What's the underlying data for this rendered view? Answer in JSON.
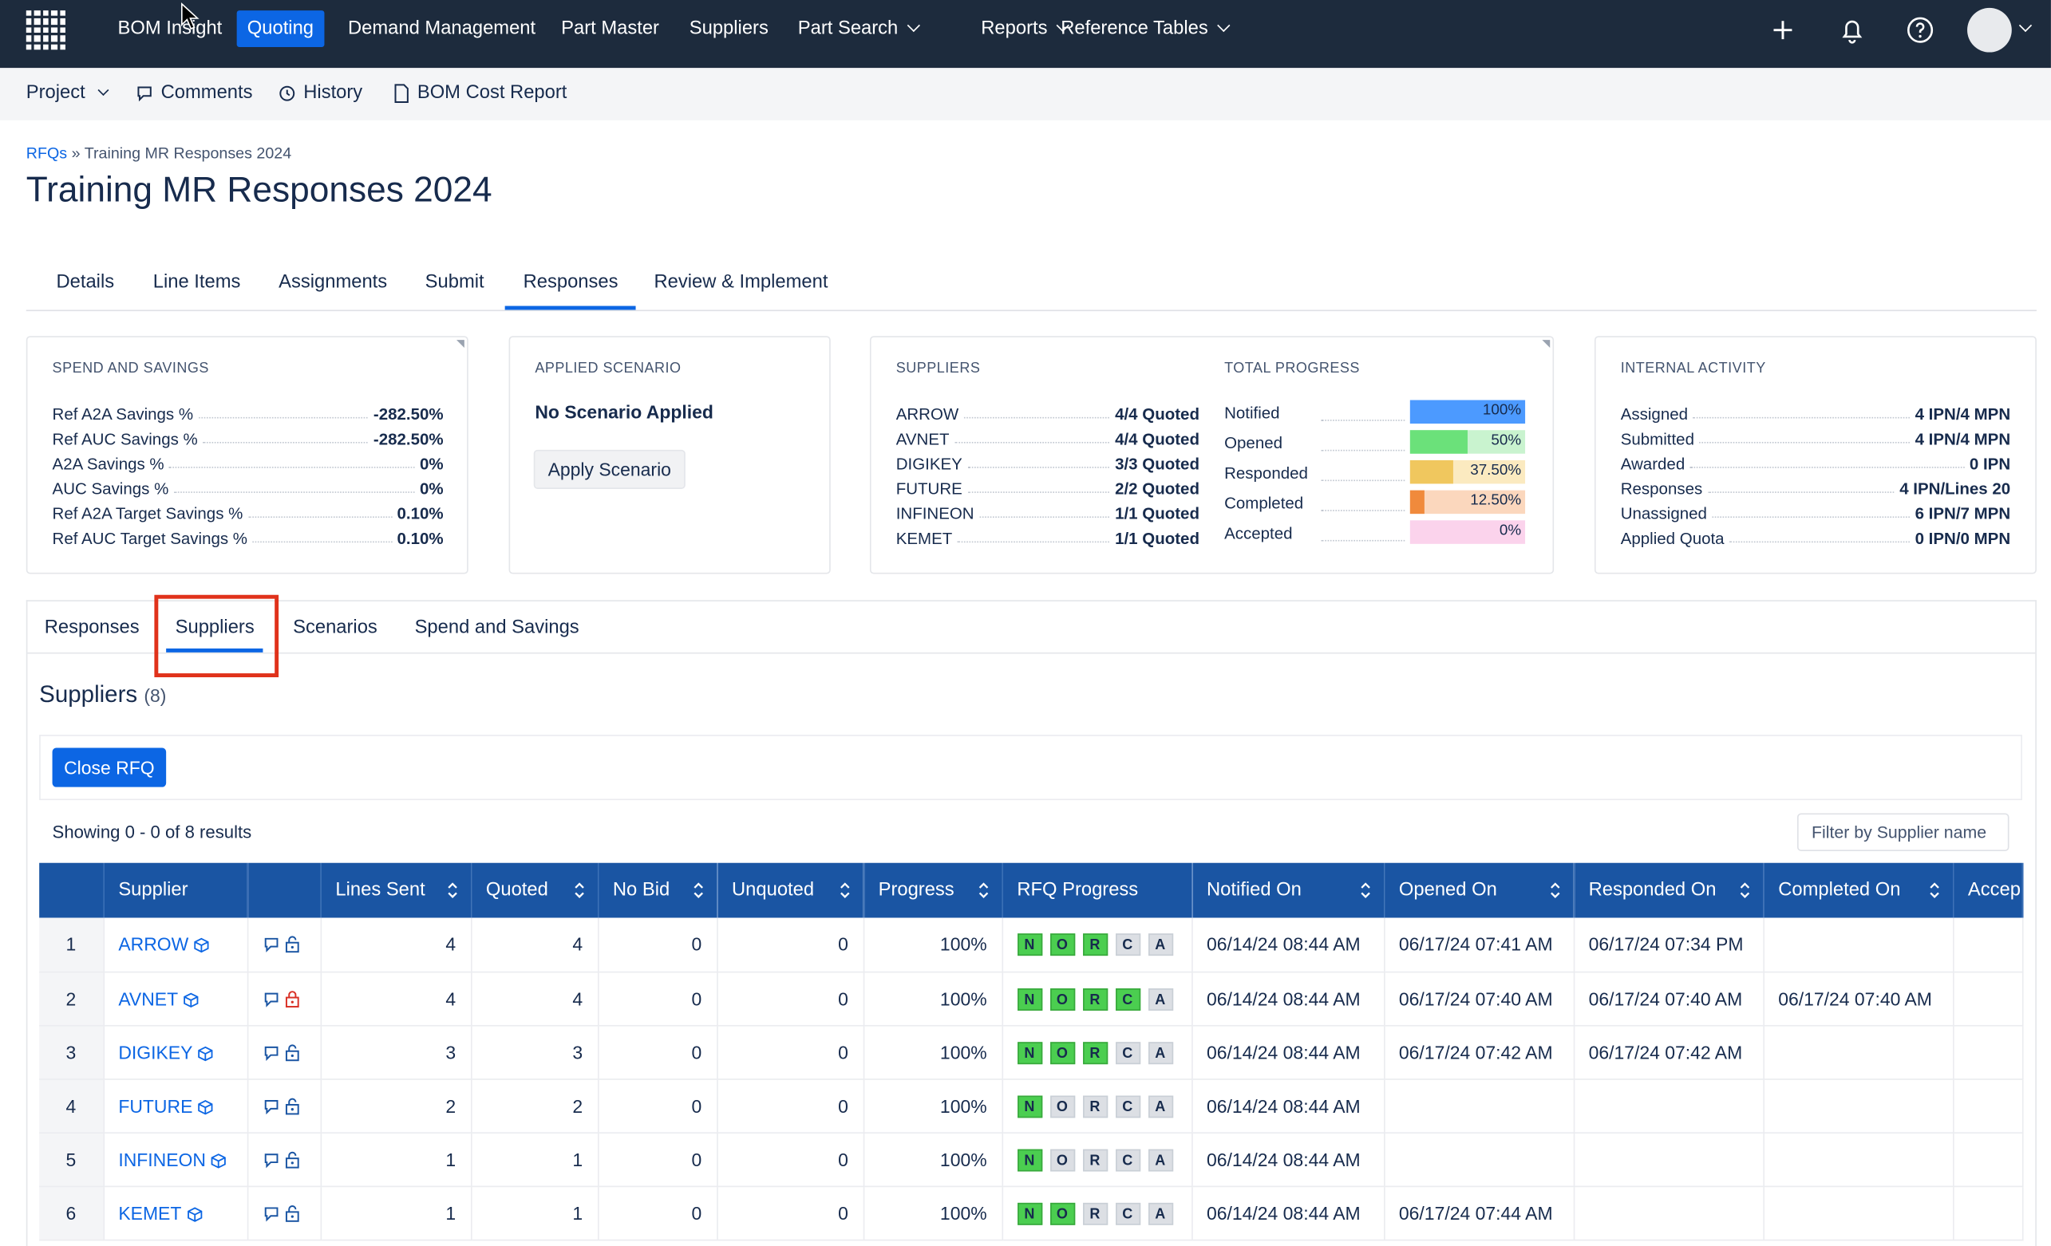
{
  "topnav": {
    "items": [
      {
        "label": "BOM Insight"
      },
      {
        "label": "Quoting"
      },
      {
        "label": "Demand Management"
      },
      {
        "label": "Part Master"
      },
      {
        "label": "Suppliers"
      },
      {
        "label": "Part Search"
      },
      {
        "label": "Reports"
      },
      {
        "label": "Reference Tables"
      }
    ],
    "active": "Quoting",
    "colors": {
      "bar": "#1d2b3d",
      "active": "#0c66e4"
    }
  },
  "subnav": {
    "project": "Project",
    "comments": "Comments",
    "history": "History",
    "bom_cost_report": "BOM Cost Report"
  },
  "breadcrumb": {
    "root": "RFQs",
    "sep": "»",
    "current": "Training MR Responses 2024"
  },
  "page_title": "Training MR Responses 2024",
  "tabs": [
    "Details",
    "Line Items",
    "Assignments",
    "Submit",
    "Responses",
    "Review & Implement"
  ],
  "active_tab": "Responses",
  "spend": {
    "heading": "SPEND AND SAVINGS",
    "rows": [
      {
        "label": "Ref A2A Savings %",
        "value": "-282.50%"
      },
      {
        "label": "Ref AUC Savings %",
        "value": "-282.50%"
      },
      {
        "label": "A2A Savings %",
        "value": "0%"
      },
      {
        "label": "AUC Savings %",
        "value": "0%"
      },
      {
        "label": "Ref A2A Target Savings %",
        "value": "0.10%"
      },
      {
        "label": "Ref AUC Target Savings %",
        "value": "0.10%"
      }
    ]
  },
  "scenario": {
    "heading": "APPLIED SCENARIO",
    "status": "No Scenario Applied",
    "button": "Apply Scenario"
  },
  "suppliers_card": {
    "heading": "SUPPLIERS",
    "rows": [
      {
        "name": "ARROW",
        "value": "4/4 Quoted"
      },
      {
        "name": "AVNET",
        "value": "4/4 Quoted"
      },
      {
        "name": "DIGIKEY",
        "value": "3/3 Quoted"
      },
      {
        "name": "FUTURE",
        "value": "2/2 Quoted"
      },
      {
        "name": "INFINEON",
        "value": "1/1 Quoted"
      },
      {
        "name": "KEMET",
        "value": "1/1 Quoted"
      }
    ]
  },
  "progress": {
    "heading": "TOTAL PROGRESS",
    "rows": [
      {
        "label": "Notified",
        "value": "100%",
        "fraction": 1.0,
        "fill": "#4c9aff",
        "bg": "#cce0ff"
      },
      {
        "label": "Opened",
        "value": "50%",
        "fraction": 0.5,
        "fill": "#6be17a",
        "bg": "#c9f3cf"
      },
      {
        "label": "Responded",
        "value": "37.50%",
        "fraction": 0.375,
        "fill": "#f0c75e",
        "bg": "#fbeac0"
      },
      {
        "label": "Completed",
        "value": "12.50%",
        "fraction": 0.125,
        "fill": "#f08a3c",
        "bg": "#fbd7bd"
      },
      {
        "label": "Accepted",
        "value": "0%",
        "fraction": 0.0,
        "fill": "#f59bd0",
        "bg": "#fbd3ec"
      }
    ]
  },
  "internal": {
    "heading": "INTERNAL ACTIVITY",
    "rows": [
      {
        "label": "Assigned",
        "value": "4 IPN/4 MPN"
      },
      {
        "label": "Submitted",
        "value": "4 IPN/4 MPN"
      },
      {
        "label": "Awarded",
        "value": "0 IPN"
      },
      {
        "label": "Responses",
        "value": "4 IPN/Lines 20"
      },
      {
        "label": "Unassigned",
        "value": "6 IPN/7 MPN"
      },
      {
        "label": "Applied Quota",
        "value": "0 IPN/0 MPN"
      }
    ]
  },
  "subtabs": [
    "Responses",
    "Suppliers",
    "Scenarios",
    "Spend and Savings"
  ],
  "active_subtab": "Suppliers",
  "section": {
    "title": "Suppliers",
    "count": "(8)"
  },
  "close_rfq": "Close RFQ",
  "showing": "Showing 0 - 0 of 8 results",
  "filter_placeholder": "Filter by Supplier name",
  "table": {
    "columns": [
      "",
      "Supplier",
      "",
      "Lines Sent",
      "Quoted",
      "No Bid",
      "Unquoted",
      "Progress",
      "RFQ Progress",
      "Notified On",
      "Opened On",
      "Responded On",
      "Completed On",
      "Accep"
    ],
    "chip_letters": [
      "N",
      "O",
      "R",
      "C",
      "A"
    ],
    "rows": [
      {
        "idx": "1",
        "supplier": "ARROW",
        "lock": "open",
        "lines_sent": "4",
        "quoted": "4",
        "no_bid": "0",
        "unquoted": "0",
        "progress": "100%",
        "rfq": [
          true,
          true,
          true,
          false,
          false
        ],
        "notified": "06/14/24 08:44 AM",
        "opened": "06/17/24 07:41 AM",
        "responded": "06/17/24 07:34 PM",
        "completed": ""
      },
      {
        "idx": "2",
        "supplier": "AVNET",
        "lock": "closed",
        "lines_sent": "4",
        "quoted": "4",
        "no_bid": "0",
        "unquoted": "0",
        "progress": "100%",
        "rfq": [
          true,
          true,
          true,
          true,
          false
        ],
        "notified": "06/14/24 08:44 AM",
        "opened": "06/17/24 07:40 AM",
        "responded": "06/17/24 07:40 AM",
        "completed": "06/17/24 07:40 AM"
      },
      {
        "idx": "3",
        "supplier": "DIGIKEY",
        "lock": "open",
        "lines_sent": "3",
        "quoted": "3",
        "no_bid": "0",
        "unquoted": "0",
        "progress": "100%",
        "rfq": [
          true,
          true,
          true,
          false,
          false
        ],
        "notified": "06/14/24 08:44 AM",
        "opened": "06/17/24 07:42 AM",
        "responded": "06/17/24 07:42 AM",
        "completed": ""
      },
      {
        "idx": "4",
        "supplier": "FUTURE",
        "lock": "open",
        "lines_sent": "2",
        "quoted": "2",
        "no_bid": "0",
        "unquoted": "0",
        "progress": "100%",
        "rfq": [
          true,
          false,
          false,
          false,
          false
        ],
        "notified": "06/14/24 08:44 AM",
        "opened": "",
        "responded": "",
        "completed": ""
      },
      {
        "idx": "5",
        "supplier": "INFINEON",
        "lock": "open",
        "lines_sent": "1",
        "quoted": "1",
        "no_bid": "0",
        "unquoted": "0",
        "progress": "100%",
        "rfq": [
          true,
          false,
          false,
          false,
          false
        ],
        "notified": "06/14/24 08:44 AM",
        "opened": "",
        "responded": "",
        "completed": ""
      },
      {
        "idx": "6",
        "supplier": "KEMET",
        "lock": "open",
        "lines_sent": "1",
        "quoted": "1",
        "no_bid": "0",
        "unquoted": "0",
        "progress": "100%",
        "rfq": [
          true,
          true,
          false,
          false,
          false
        ],
        "notified": "06/14/24 08:44 AM",
        "opened": "06/17/24 07:44 AM",
        "responded": "",
        "completed": ""
      }
    ]
  }
}
